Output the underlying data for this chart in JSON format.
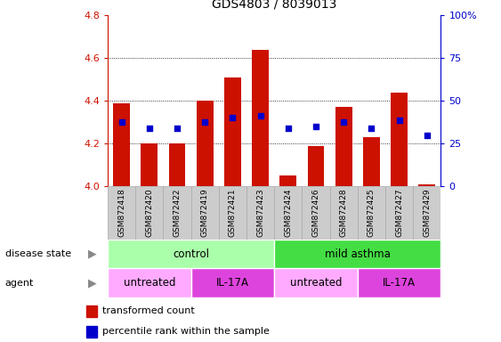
{
  "title": "GDS4803 / 8039013",
  "samples": [
    "GSM872418",
    "GSM872420",
    "GSM872422",
    "GSM872419",
    "GSM872421",
    "GSM872423",
    "GSM872424",
    "GSM872426",
    "GSM872428",
    "GSM872425",
    "GSM872427",
    "GSM872429"
  ],
  "bar_values": [
    4.39,
    4.2,
    4.2,
    4.4,
    4.51,
    4.64,
    4.05,
    4.19,
    4.37,
    4.23,
    4.44,
    4.01
  ],
  "percentile_values": [
    4.3,
    4.27,
    4.27,
    4.3,
    4.32,
    4.33,
    4.27,
    4.28,
    4.3,
    4.27,
    4.31,
    4.24
  ],
  "bar_color": "#cc1100",
  "marker_color": "#0000cc",
  "ylim": [
    4.0,
    4.8
  ],
  "yticks": [
    4.0,
    4.2,
    4.4,
    4.6,
    4.8
  ],
  "right_yticks": [
    0,
    25,
    50,
    75,
    100
  ],
  "disease_state_groups": [
    {
      "label": "control",
      "start": 0,
      "end": 6,
      "color": "#aaffaa"
    },
    {
      "label": "mild asthma",
      "start": 6,
      "end": 12,
      "color": "#44dd44"
    }
  ],
  "agent_groups": [
    {
      "label": "untreated",
      "start": 0,
      "end": 3,
      "color": "#ffaaff"
    },
    {
      "label": "IL-17A",
      "start": 3,
      "end": 6,
      "color": "#dd44dd"
    },
    {
      "label": "untreated",
      "start": 6,
      "end": 9,
      "color": "#ffaaff"
    },
    {
      "label": "IL-17A",
      "start": 9,
      "end": 12,
      "color": "#dd44dd"
    }
  ],
  "legend_red_label": "transformed count",
  "legend_blue_label": "percentile rank within the sample",
  "left_color": "#cc1100",
  "right_color": "#0000cc",
  "tick_bg_color": "#cccccc",
  "tick_bg_edge": "#aaaaaa"
}
